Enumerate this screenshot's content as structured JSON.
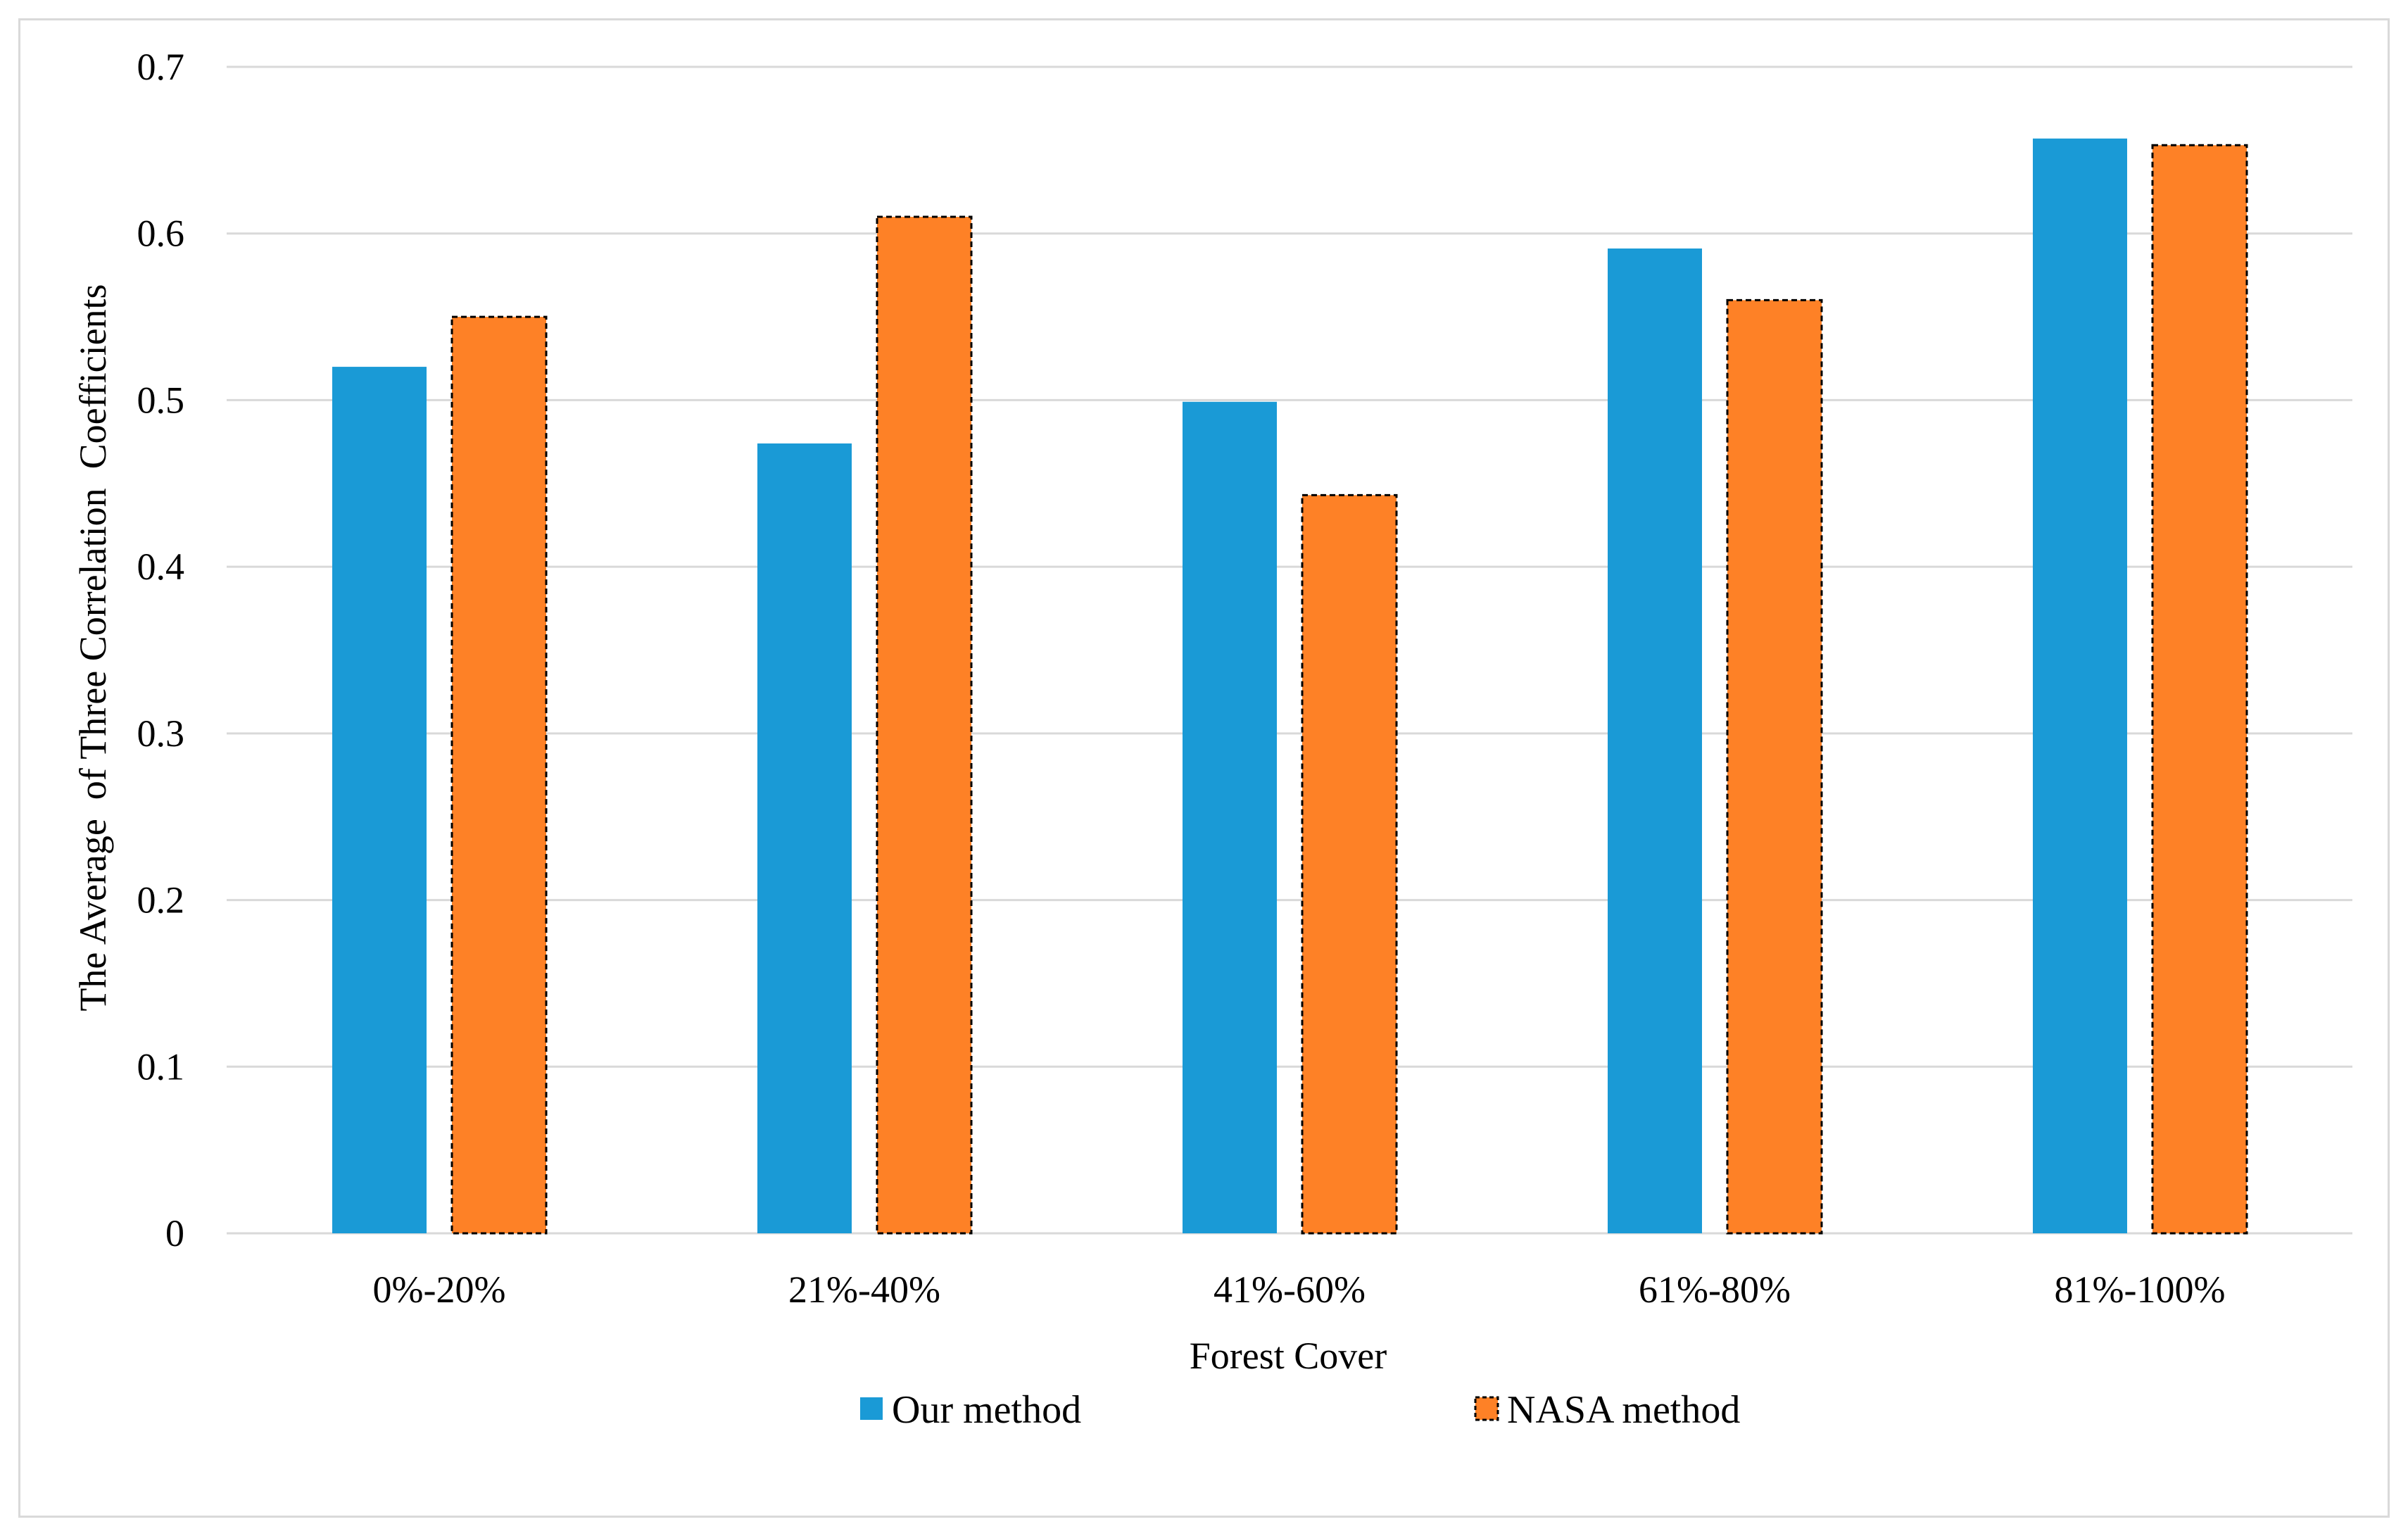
{
  "chart_data": {
    "type": "bar",
    "title": "",
    "xlabel": "Forest Cover",
    "ylabel": "The Average  of Three Correlation  Coefficients",
    "categories": [
      "0%-20%",
      "21%-40%",
      "41%-60%",
      "61%-80%",
      "81%-100%"
    ],
    "series": [
      {
        "name": "Our method",
        "color": "#1a9ad6",
        "border": "none",
        "values": [
          0.52,
          0.474,
          0.499,
          0.591,
          0.657
        ]
      },
      {
        "name": "NASA method",
        "color": "#fe8126",
        "border": "dashed",
        "values": [
          0.55,
          0.61,
          0.443,
          0.56,
          0.653
        ]
      }
    ],
    "ylim": [
      0,
      0.7
    ],
    "yticks": [
      "0",
      "0.1",
      "0.2",
      "0.3",
      "0.4",
      "0.5",
      "0.6",
      "0.7"
    ],
    "ytick_values": [
      0,
      0.1,
      0.2,
      0.3,
      0.4,
      0.5,
      0.6,
      0.7
    ],
    "grid": true,
    "legend_position": "bottom-center"
  }
}
